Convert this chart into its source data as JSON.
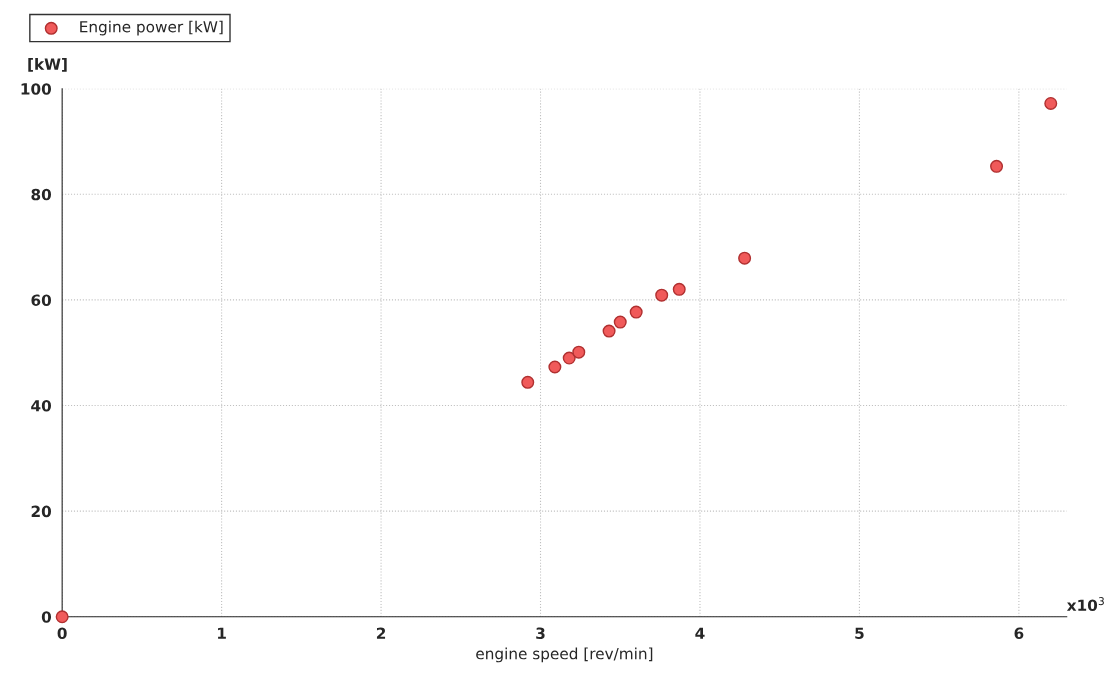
{
  "chart_data": {
    "type": "scatter",
    "xlabel": "engine speed [rev/min]",
    "ylabel": "[kW]",
    "annotations": [
      "x10$^{3}$"
    ],
    "series": [
      {
        "name": "Engine power [kW]",
        "color": "#f05a5a",
        "x": [
          0,
          2.92,
          3.09,
          3.18,
          3.24,
          3.43,
          3.5,
          3.6,
          3.76,
          3.87,
          4.28,
          5.86,
          6.2
        ],
        "values": [
          0,
          44.4,
          47.3,
          49.0,
          50.1,
          54.1,
          55.8,
          57.7,
          60.9,
          62.0,
          67.9,
          85.3,
          97.2
        ]
      }
    ],
    "xlim": [
      0,
      6.3
    ],
    "ylim": [
      0,
      100
    ],
    "xticks": [
      0,
      1,
      2,
      3,
      4,
      5,
      6
    ],
    "yticks": [
      0,
      20,
      40,
      60,
      80,
      100
    ],
    "grid": true,
    "legend": "top left",
    "marker": "circle"
  }
}
